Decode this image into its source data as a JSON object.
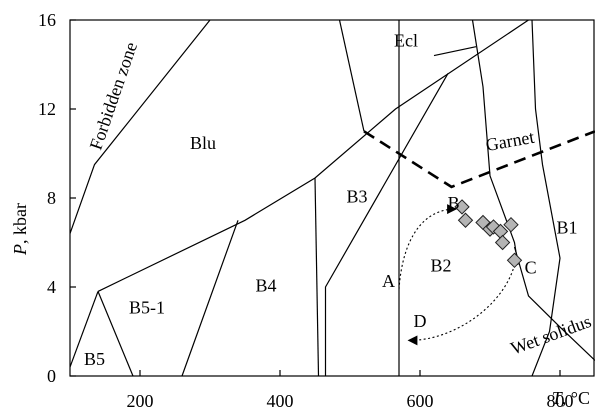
{
  "chart_data": {
    "type": "scatter",
    "title": "",
    "xlim": [
      100,
      850
    ],
    "ylim": [
      0,
      16
    ],
    "x_ticks": [
      "200",
      "400",
      "600",
      "800"
    ],
    "y_ticks": [
      "0",
      "4",
      "8",
      "12",
      "16"
    ],
    "y_label_var": "P",
    "y_label_unit": ", kbar",
    "x_label_var": "T",
    "x_label_unit": ", °C",
    "boundaries": [
      {
        "name": "forbidden-line",
        "style": "solid",
        "points": [
          [
            100,
            6.4
          ],
          [
            135,
            9.5
          ],
          [
            300,
            16
          ]
        ]
      },
      {
        "name": "blu-lower-boundary",
        "style": "solid",
        "points": [
          [
            140,
            3.8
          ],
          [
            350,
            7.0
          ],
          [
            450,
            8.9
          ],
          [
            565,
            12.0
          ],
          [
            755,
            16
          ]
        ]
      },
      {
        "name": "b5-b51-left",
        "style": "solid",
        "points": [
          [
            140,
            3.8
          ],
          [
            100,
            0.4
          ]
        ]
      },
      {
        "name": "b5-b51-right",
        "style": "solid",
        "points": [
          [
            140,
            3.8
          ],
          [
            190,
            0
          ]
        ]
      },
      {
        "name": "b51-b4",
        "style": "solid",
        "points": [
          [
            340,
            7.0
          ],
          [
            260,
            0
          ]
        ]
      },
      {
        "name": "b4-b3",
        "style": "solid",
        "points": [
          [
            450,
            8.9
          ],
          [
            455,
            0
          ]
        ]
      },
      {
        "name": "b3-b2",
        "style": "solid",
        "points": [
          [
            640,
            13.6
          ],
          [
            465,
            4.0
          ],
          [
            465,
            0
          ]
        ]
      },
      {
        "name": "vertical-line",
        "style": "solid",
        "points": [
          [
            570,
            0
          ],
          [
            570,
            16
          ]
        ]
      },
      {
        "name": "ecl-left",
        "style": "solid",
        "points": [
          [
            485,
            16
          ],
          [
            520,
            11.0
          ]
        ]
      },
      {
        "name": "ecl-lower",
        "style": "solid",
        "points": [
          [
            620,
            14.4
          ],
          [
            680,
            14.8
          ]
        ]
      },
      {
        "name": "ecl-right",
        "style": "solid",
        "points": [
          [
            675,
            16
          ],
          [
            690,
            13.0
          ],
          [
            700,
            9.0
          ],
          [
            735,
            6.0
          ],
          [
            740,
            5.0
          ]
        ]
      },
      {
        "name": "b1-left",
        "style": "solid",
        "points": [
          [
            760,
            16
          ],
          [
            765,
            12.0
          ],
          [
            775,
            9.5
          ],
          [
            800,
            5.3
          ],
          [
            785,
            2.0
          ],
          [
            760,
            0
          ]
        ]
      },
      {
        "name": "wet-solidus",
        "style": "solid",
        "points": [
          [
            735,
            5.8
          ],
          [
            755,
            3.6
          ],
          [
            800,
            2.2
          ],
          [
            850,
            0.7
          ]
        ]
      },
      {
        "name": "garnet-line",
        "style": "dashed",
        "points": [
          [
            520,
            11.0
          ],
          [
            645,
            8.5
          ],
          [
            850,
            11.0
          ]
        ]
      }
    ],
    "field_labels": [
      {
        "text": "Forbidden zone",
        "x": 170,
        "y": 12.5,
        "angle": -71
      },
      {
        "text": "Ecl",
        "x": 580,
        "y": 14.8,
        "angle": 0
      },
      {
        "text": "Blu",
        "x": 290,
        "y": 10.2,
        "angle": 0
      },
      {
        "text": "Garnet",
        "x": 730,
        "y": 10.3,
        "angle": -10
      },
      {
        "text": "B3",
        "x": 510,
        "y": 7.8,
        "angle": 0
      },
      {
        "text": "B2",
        "x": 630,
        "y": 4.7,
        "angle": 0
      },
      {
        "text": "B1",
        "x": 810,
        "y": 6.4,
        "angle": 0
      },
      {
        "text": "B4",
        "x": 380,
        "y": 3.8,
        "angle": 0
      },
      {
        "text": "B5-1",
        "x": 210,
        "y": 2.8,
        "angle": 0
      },
      {
        "text": "B5",
        "x": 135,
        "y": 0.5,
        "angle": 0
      },
      {
        "text": "Wet solidus",
        "x": 790,
        "y": 1.6,
        "angle": -20
      }
    ],
    "path_labels": [
      {
        "text": "A",
        "x": 555,
        "y": 4.0
      },
      {
        "text": "B",
        "x": 648,
        "y": 7.5
      },
      {
        "text": "C",
        "x": 758,
        "y": 4.6
      },
      {
        "text": "D",
        "x": 600,
        "y": 2.2
      }
    ],
    "samples": [
      {
        "x": 660,
        "y": 7.6
      },
      {
        "x": 665,
        "y": 7.0
      },
      {
        "x": 690,
        "y": 6.9
      },
      {
        "x": 700,
        "y": 6.6
      },
      {
        "x": 705,
        "y": 6.7
      },
      {
        "x": 715,
        "y": 6.5
      },
      {
        "x": 730,
        "y": 6.8
      },
      {
        "x": 718,
        "y": 6.0
      },
      {
        "x": 735,
        "y": 5.2
      }
    ],
    "pt_paths": [
      {
        "name": "path-a-to-b",
        "points": [
          [
            570,
            3.9
          ],
          [
            575,
            6.2
          ],
          [
            605,
            7.5
          ],
          [
            650,
            7.5
          ]
        ],
        "arrow": "end"
      },
      {
        "name": "path-c-to-d",
        "points": [
          [
            735,
            5.0
          ],
          [
            720,
            3.2
          ],
          [
            650,
            1.6
          ],
          [
            585,
            1.6
          ]
        ],
        "arrow": "end"
      }
    ]
  }
}
